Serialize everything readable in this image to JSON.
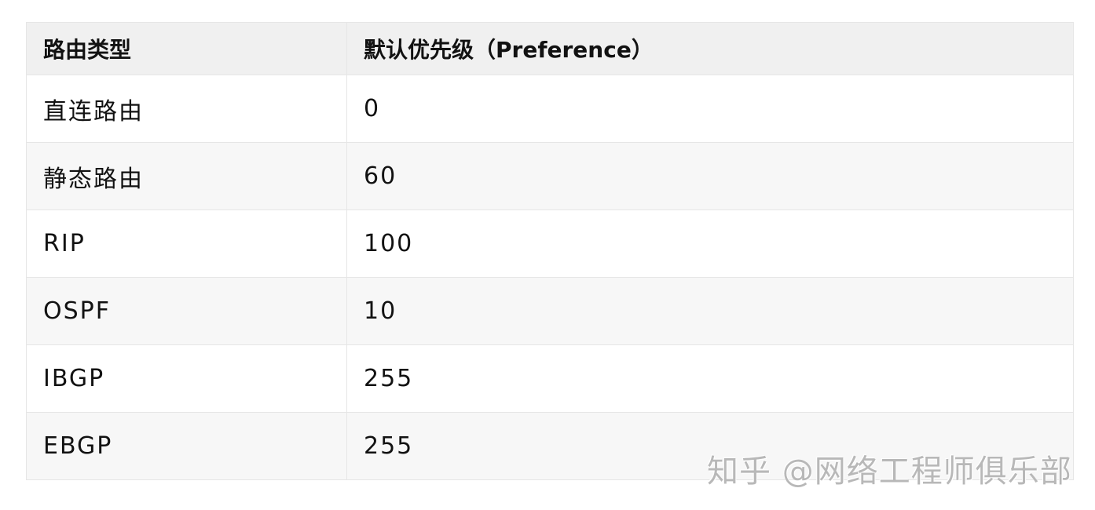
{
  "table": {
    "headers": [
      "路由类型",
      "默认优先级（Preference）"
    ],
    "rows": [
      [
        "直连路由",
        "0"
      ],
      [
        "静态路由",
        "60"
      ],
      [
        "RIP",
        "100"
      ],
      [
        "OSPF",
        "10"
      ],
      [
        "IBGP",
        "255"
      ],
      [
        "EBGP",
        "255"
      ]
    ]
  },
  "watermark": "知乎 @网络工程师俱乐部"
}
